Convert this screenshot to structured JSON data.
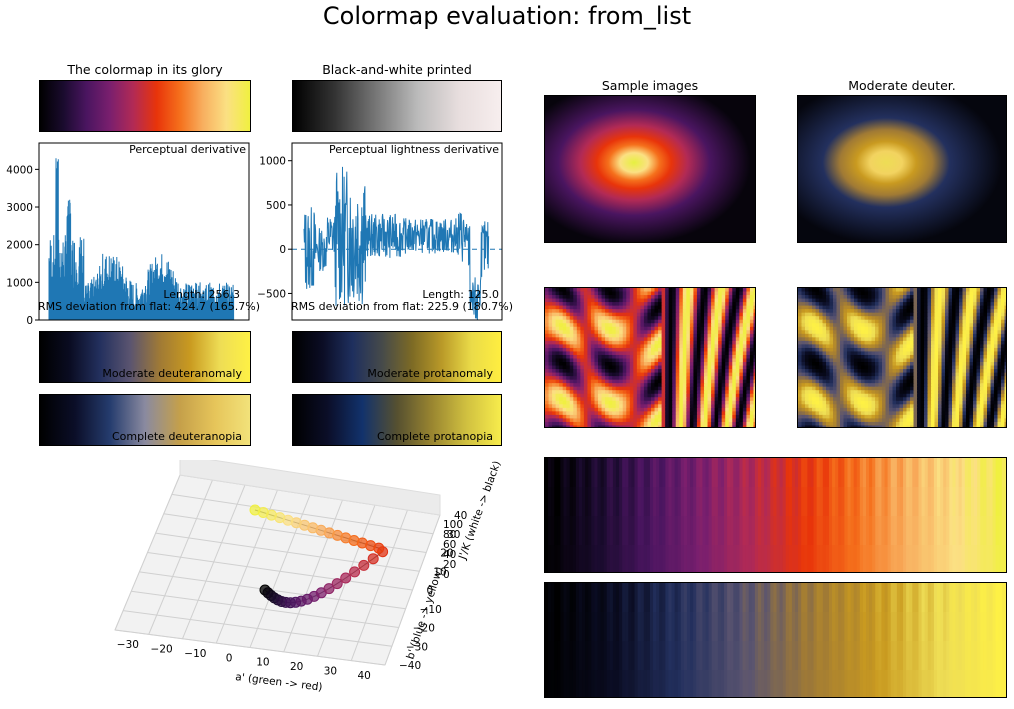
{
  "figure": {
    "title": "Colormap evaluation: from_list",
    "panel_titles": {
      "glory": "The colormap in its glory",
      "bw": "Black-and-white printed",
      "samples": "Sample images",
      "deuter": "Moderate deuter."
    },
    "cvd_labels": {
      "mod_deuteranomaly": "Moderate deuteranomaly",
      "mod_protanomaly": "Moderate protanomaly",
      "comp_deuteranopia": "Complete deuteranopia",
      "comp_protanopia": "Complete protanopia"
    },
    "colormap_stops": [
      "#000000",
      "#1a0b2e",
      "#4a1560",
      "#7a1f6e",
      "#b22a55",
      "#e8340a",
      "#f5701c",
      "#f8b060",
      "#fbe083",
      "#f0f040"
    ],
    "bw_stops": [
      "#000000",
      "#333333",
      "#777777",
      "#bbbbbb",
      "#e8dede",
      "#f7eeee"
    ],
    "deuter_stops": [
      "#000000",
      "#0a0c22",
      "#23305e",
      "#5a5470",
      "#a07a35",
      "#c99a20",
      "#eedd55",
      "#fef145"
    ],
    "protan_stops": [
      "#000000",
      "#0b0d25",
      "#1e2f5e",
      "#464a4a",
      "#7c6a25",
      "#b99928",
      "#eadb48",
      "#ffee40"
    ],
    "deuteranopia_stops": [
      "#000000",
      "#0b0e28",
      "#253c6e",
      "#8a8aa0",
      "#c5a04a",
      "#e6c55a",
      "#f2e27a"
    ],
    "protanopia_stops": [
      "#000000",
      "#0b0e28",
      "#12326c",
      "#565030",
      "#998530",
      "#d0c040",
      "#f7ec4c"
    ]
  },
  "chart_data": [
    {
      "type": "line",
      "title": "Perceptual derivative",
      "ylim": [
        0,
        4700
      ],
      "yticks": [
        "0",
        "1000",
        "2000",
        "3000",
        "4000"
      ],
      "annotations": [
        "Length: 256.3",
        "RMS deviation from flat: 424.7 (165.7%)"
      ],
      "series_color": "#1f77b4"
    },
    {
      "type": "line",
      "title": "Perceptual lightness derivative",
      "ylim": [
        -800,
        1200
      ],
      "yticks": [
        "−500",
        "0",
        "500",
        "1000"
      ],
      "annotations": [
        "Length: 125.0",
        "RMS deviation from flat: 225.9 (180.7%)"
      ],
      "series_color": "#1f77b4"
    },
    {
      "type": "scatter",
      "title": "",
      "xlabel": "a' (green -> red)",
      "ylabel": "b' (blue -> yellow)",
      "zlabel": "J'/K (white -> black)",
      "xticks": [
        "−30",
        "−20",
        "−10",
        "0",
        "10",
        "20",
        "30",
        "40"
      ],
      "yticks": [
        "−40",
        "−30",
        "−20",
        "−10",
        "0",
        "10",
        "20",
        "30",
        "40"
      ],
      "zticks": [
        "0",
        "20",
        "40",
        "60",
        "80",
        "100"
      ]
    }
  ]
}
